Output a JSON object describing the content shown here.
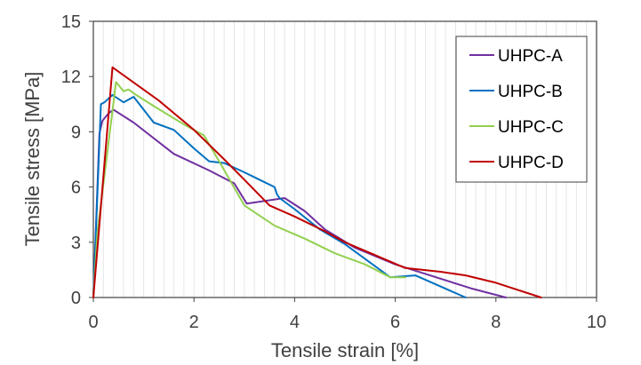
{
  "chart_data": {
    "type": "line",
    "xlabel": "Tensile strain [%]",
    "ylabel": "Tensile stress [MPa]",
    "xlim": [
      0,
      10
    ],
    "ylim": [
      0,
      15
    ],
    "xticks": [
      0,
      2,
      4,
      6,
      8,
      10
    ],
    "yticks": [
      0,
      3,
      6,
      9,
      12,
      15
    ],
    "x_minor_grid_step": 0.2,
    "grid": "vertical minor lines",
    "legend_position": "top-right",
    "series": [
      {
        "name": "UHPC-A",
        "color": "#7030a0",
        "points": [
          [
            0,
            0
          ],
          [
            0.12,
            8.9
          ],
          [
            0.18,
            9.6
          ],
          [
            0.3,
            10.0
          ],
          [
            0.4,
            10.2
          ],
          [
            0.8,
            9.5
          ],
          [
            1.6,
            7.8
          ],
          [
            2.3,
            6.9
          ],
          [
            2.8,
            6.2
          ],
          [
            3.05,
            5.1
          ],
          [
            3.8,
            5.4
          ],
          [
            4.2,
            4.7
          ],
          [
            4.6,
            3.7
          ],
          [
            5.2,
            2.7
          ],
          [
            6.0,
            1.8
          ],
          [
            7.5,
            0.5
          ],
          [
            8.2,
            0
          ]
        ]
      },
      {
        "name": "UHPC-B",
        "color": "#0070c0",
        "points": [
          [
            0,
            0
          ],
          [
            0.15,
            10.5
          ],
          [
            0.22,
            10.6
          ],
          [
            0.38,
            11.0
          ],
          [
            0.6,
            10.6
          ],
          [
            0.8,
            10.9
          ],
          [
            1.2,
            9.5
          ],
          [
            1.6,
            9.1
          ],
          [
            2.0,
            8.1
          ],
          [
            2.3,
            7.4
          ],
          [
            2.6,
            7.3
          ],
          [
            3.0,
            6.8
          ],
          [
            3.3,
            6.4
          ],
          [
            3.6,
            6.0
          ],
          [
            3.65,
            5.6
          ],
          [
            3.7,
            5.4
          ],
          [
            4.0,
            4.8
          ],
          [
            4.5,
            3.7
          ],
          [
            5.0,
            2.9
          ],
          [
            5.9,
            1.1
          ],
          [
            6.4,
            1.2
          ],
          [
            7.4,
            0
          ]
        ]
      },
      {
        "name": "UHPC-C",
        "color": "#92d050",
        "points": [
          [
            0,
            0
          ],
          [
            0.08,
            3.5
          ],
          [
            0.45,
            11.7
          ],
          [
            0.6,
            11.2
          ],
          [
            0.7,
            11.3
          ],
          [
            0.85,
            11.0
          ],
          [
            1.2,
            10.4
          ],
          [
            1.8,
            9.4
          ],
          [
            2.2,
            8.8
          ],
          [
            2.5,
            7.4
          ],
          [
            3.0,
            5.0
          ],
          [
            3.6,
            3.9
          ],
          [
            4.2,
            3.2
          ],
          [
            4.8,
            2.4
          ],
          [
            5.4,
            1.8
          ],
          [
            5.9,
            1.1
          ],
          [
            6.2,
            1.1
          ]
        ]
      },
      {
        "name": "UHPC-D",
        "color": "#c00000",
        "points": [
          [
            0,
            0
          ],
          [
            0.38,
            12.5
          ],
          [
            1.3,
            10.7
          ],
          [
            2.0,
            9.1
          ],
          [
            2.6,
            7.5
          ],
          [
            3.0,
            6.4
          ],
          [
            3.5,
            5.0
          ],
          [
            4.0,
            4.4
          ],
          [
            4.6,
            3.6
          ],
          [
            5.0,
            3.0
          ],
          [
            5.6,
            2.3
          ],
          [
            6.2,
            1.6
          ],
          [
            6.9,
            1.4
          ],
          [
            7.4,
            1.2
          ],
          [
            8.0,
            0.8
          ],
          [
            8.9,
            0
          ]
        ]
      }
    ]
  }
}
